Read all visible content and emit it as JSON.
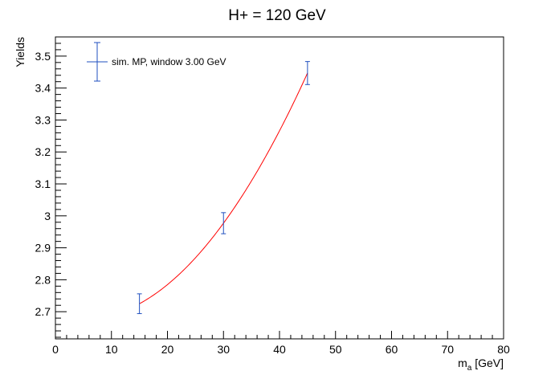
{
  "chart_data": {
    "type": "scatter",
    "title": "H+ = 120 GeV",
    "xlabel": "m",
    "xlabel_sub": "a",
    "xlabel_unit": " [GeV]",
    "ylabel": "Yields",
    "xlim": [
      0,
      80
    ],
    "ylim": [
      2.615,
      3.56
    ],
    "x_ticks": [
      0,
      10,
      20,
      30,
      40,
      50,
      60,
      70,
      80
    ],
    "y_ticks": [
      2.7,
      2.8,
      2.9,
      3,
      3.1,
      3.2,
      3.3,
      3.4,
      3.5
    ],
    "y_tick_labels": [
      "2.7",
      "2.8",
      "2.9",
      "3",
      "3.1",
      "3.2",
      "3.3",
      "3.4",
      "3.5"
    ],
    "grid": false,
    "legend_position": "top-left",
    "series": [
      {
        "name": "sim. MP, window 3.00 GeV",
        "color": "#1f4fbf",
        "points": [
          {
            "x": 15,
            "y": 2.725,
            "yerr": 0.031
          },
          {
            "x": 30,
            "y": 2.977,
            "yerr": 0.033
          },
          {
            "x": 45,
            "y": 3.447,
            "yerr": 0.036
          }
        ]
      }
    ],
    "fit": {
      "color": "#ff0000",
      "x_range": [
        15,
        45
      ],
      "points": [
        [
          15,
          2.725
        ],
        [
          30,
          2.977
        ],
        [
          45,
          3.447
        ]
      ]
    }
  }
}
